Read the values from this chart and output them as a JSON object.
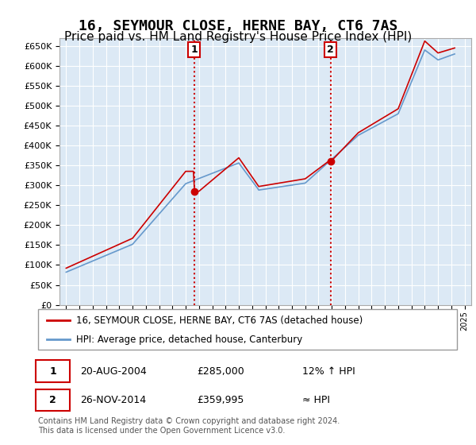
{
  "title": "16, SEYMOUR CLOSE, HERNE BAY, CT6 7AS",
  "subtitle": "Price paid vs. HM Land Registry's House Price Index (HPI)",
  "title_fontsize": 13,
  "subtitle_fontsize": 11,
  "background_color": "#ffffff",
  "plot_bg_color": "#dce9f5",
  "grid_color": "#ffffff",
  "red_line_color": "#cc0000",
  "blue_line_color": "#6699cc",
  "purchase1_x": 2004.646,
  "purchase1_y": 285000,
  "purchase1_label": "1",
  "purchase2_x": 2014.899,
  "purchase2_y": 359995,
  "purchase2_label": "2",
  "vline_color": "#cc0000",
  "marker_color": "#cc0000",
  "ylim": [
    0,
    670000
  ],
  "xlim": [
    1994.5,
    2025.5
  ],
  "yticks": [
    0,
    50000,
    100000,
    150000,
    200000,
    250000,
    300000,
    350000,
    400000,
    450000,
    500000,
    550000,
    600000,
    650000
  ],
  "legend_label_red": "16, SEYMOUR CLOSE, HERNE BAY, CT6 7AS (detached house)",
  "legend_label_blue": "HPI: Average price, detached house, Canterbury",
  "annotation1_date": "20-AUG-2004",
  "annotation1_price": "£285,000",
  "annotation1_hpi": "12% ↑ HPI",
  "annotation2_date": "26-NOV-2014",
  "annotation2_price": "£359,995",
  "annotation2_hpi": "≈ HPI",
  "footer": "Contains HM Land Registry data © Crown copyright and database right 2024.\nThis data is licensed under the Open Government Licence v3.0."
}
